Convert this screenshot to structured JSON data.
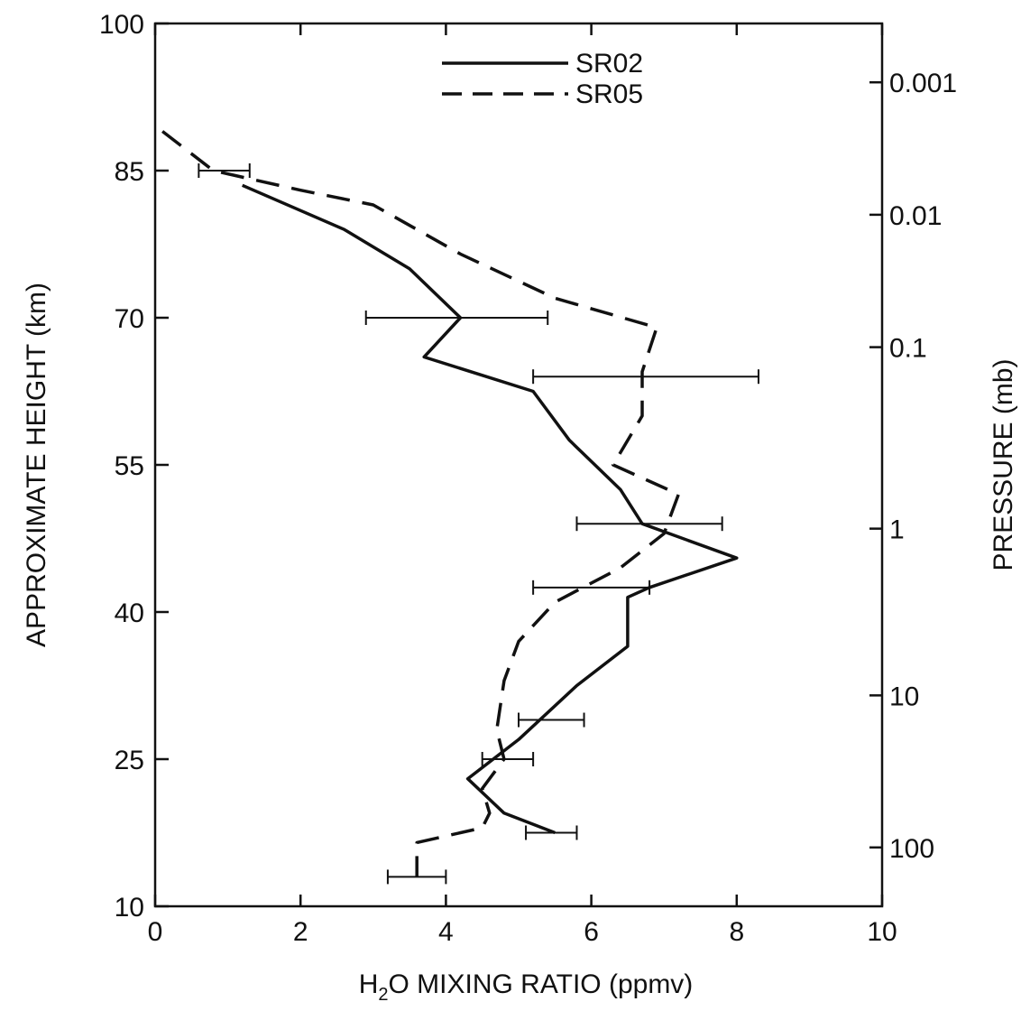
{
  "chart_data": {
    "type": "line",
    "title": "",
    "xlabel": {
      "prefix": "H",
      "subscript": "2",
      "suffix": "O MIXING RATIO (ppmv)"
    },
    "ylabel": "APPROXIMATE HEIGHT (km)",
    "y2label": "PRESSURE (mb)",
    "xlim": [
      0,
      10
    ],
    "ylim": [
      10,
      100
    ],
    "x_ticks": [
      "0",
      "2",
      "4",
      "6",
      "8",
      "10"
    ],
    "y_ticks": [
      "10",
      "25",
      "40",
      "55",
      "70",
      "85",
      "100"
    ],
    "y2_ticks": [
      {
        "label": "0.001",
        "height_km": 94
      },
      {
        "label": "0.01",
        "height_km": 80.5
      },
      {
        "label": "0.1",
        "height_km": 67
      },
      {
        "label": "1",
        "height_km": 48.5
      },
      {
        "label": "10",
        "height_km": 31.5
      },
      {
        "label": "100",
        "height_km": 16
      }
    ],
    "legend": {
      "placement": "top-center"
    },
    "grid": false,
    "series": [
      {
        "name": "SR02",
        "style": "solid",
        "points": [
          [
            1.2,
            83.5
          ],
          [
            2.6,
            79
          ],
          [
            3.5,
            75
          ],
          [
            4.2,
            70
          ],
          [
            3.7,
            66
          ],
          [
            5.2,
            62.5
          ],
          [
            5.7,
            57.5
          ],
          [
            6.4,
            52.5
          ],
          [
            6.7,
            49
          ],
          [
            8.0,
            45.5
          ],
          [
            6.8,
            42.5
          ],
          [
            6.5,
            41.5
          ],
          [
            6.5,
            36.5
          ],
          [
            5.8,
            32.5
          ],
          [
            5.0,
            27
          ],
          [
            4.3,
            23
          ],
          [
            4.8,
            19.5
          ],
          [
            5.5,
            17.5
          ]
        ],
        "error_bars": [
          {
            "y": 85,
            "x_low": 0.6,
            "x_high": 1.3
          },
          {
            "y": 70,
            "x_low": 2.9,
            "x_high": 5.4
          },
          {
            "y": 64,
            "x_low": 5.2,
            "x_high": 8.3
          },
          {
            "y": 49,
            "x_low": 5.8,
            "x_high": 7.8
          },
          {
            "y": 42.5,
            "x_low": 5.2,
            "x_high": 6.8
          },
          {
            "y": 29,
            "x_low": 5.0,
            "x_high": 5.9
          },
          {
            "y": 25,
            "x_low": 4.5,
            "x_high": 5.2
          },
          {
            "y": 17.5,
            "x_low": 5.1,
            "x_high": 5.8
          },
          {
            "y": 13,
            "x_low": 3.2,
            "x_high": 4.0
          }
        ]
      },
      {
        "name": "SR05",
        "style": "dashed",
        "points": [
          [
            0.1,
            89
          ],
          [
            0.8,
            85
          ],
          [
            2.0,
            83
          ],
          [
            3.0,
            81.5
          ],
          [
            4.2,
            76.5
          ],
          [
            5.5,
            72
          ],
          [
            6.9,
            69
          ],
          [
            6.7,
            64.5
          ],
          [
            6.7,
            60
          ],
          [
            6.3,
            55
          ],
          [
            7.2,
            52
          ],
          [
            7.0,
            48
          ],
          [
            6.4,
            44.5
          ],
          [
            5.5,
            41
          ],
          [
            5.0,
            37
          ],
          [
            4.8,
            33
          ],
          [
            4.7,
            28
          ],
          [
            4.8,
            25
          ],
          [
            4.5,
            22
          ],
          [
            4.6,
            19.5
          ],
          [
            4.5,
            18
          ],
          [
            3.6,
            16.5
          ],
          [
            3.6,
            13
          ]
        ]
      }
    ]
  }
}
